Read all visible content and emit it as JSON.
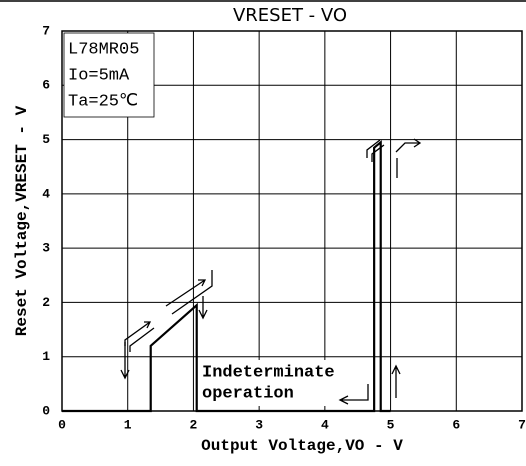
{
  "chart_data": {
    "type": "line",
    "title": "VRESET - VO",
    "xlabel": "Output Voltage,VO - V",
    "ylabel": "Reset Voltage,VRESET - V",
    "annotations": [
      "L78MR05",
      "Io=5mA",
      "Ta=25℃",
      "Indeterminate",
      "operation"
    ],
    "series": [
      {
        "color": "#000000",
        "x": [
          0,
          1.35,
          1.35,
          2.05,
          2.05,
          4.75,
          4.75,
          4.85,
          4.85,
          5.0
        ],
        "values": [
          0,
          0,
          1.2,
          1.95,
          0,
          0,
          4.85,
          4.95,
          0,
          0
        ]
      }
    ],
    "xlim": [
      0,
      7
    ],
    "xticks": [
      0,
      1,
      2,
      3,
      4,
      5,
      6,
      7
    ],
    "ylim": [
      0,
      7
    ],
    "yticks": [
      0,
      1,
      2,
      3,
      4,
      5,
      6,
      7
    ],
    "grid": true
  }
}
